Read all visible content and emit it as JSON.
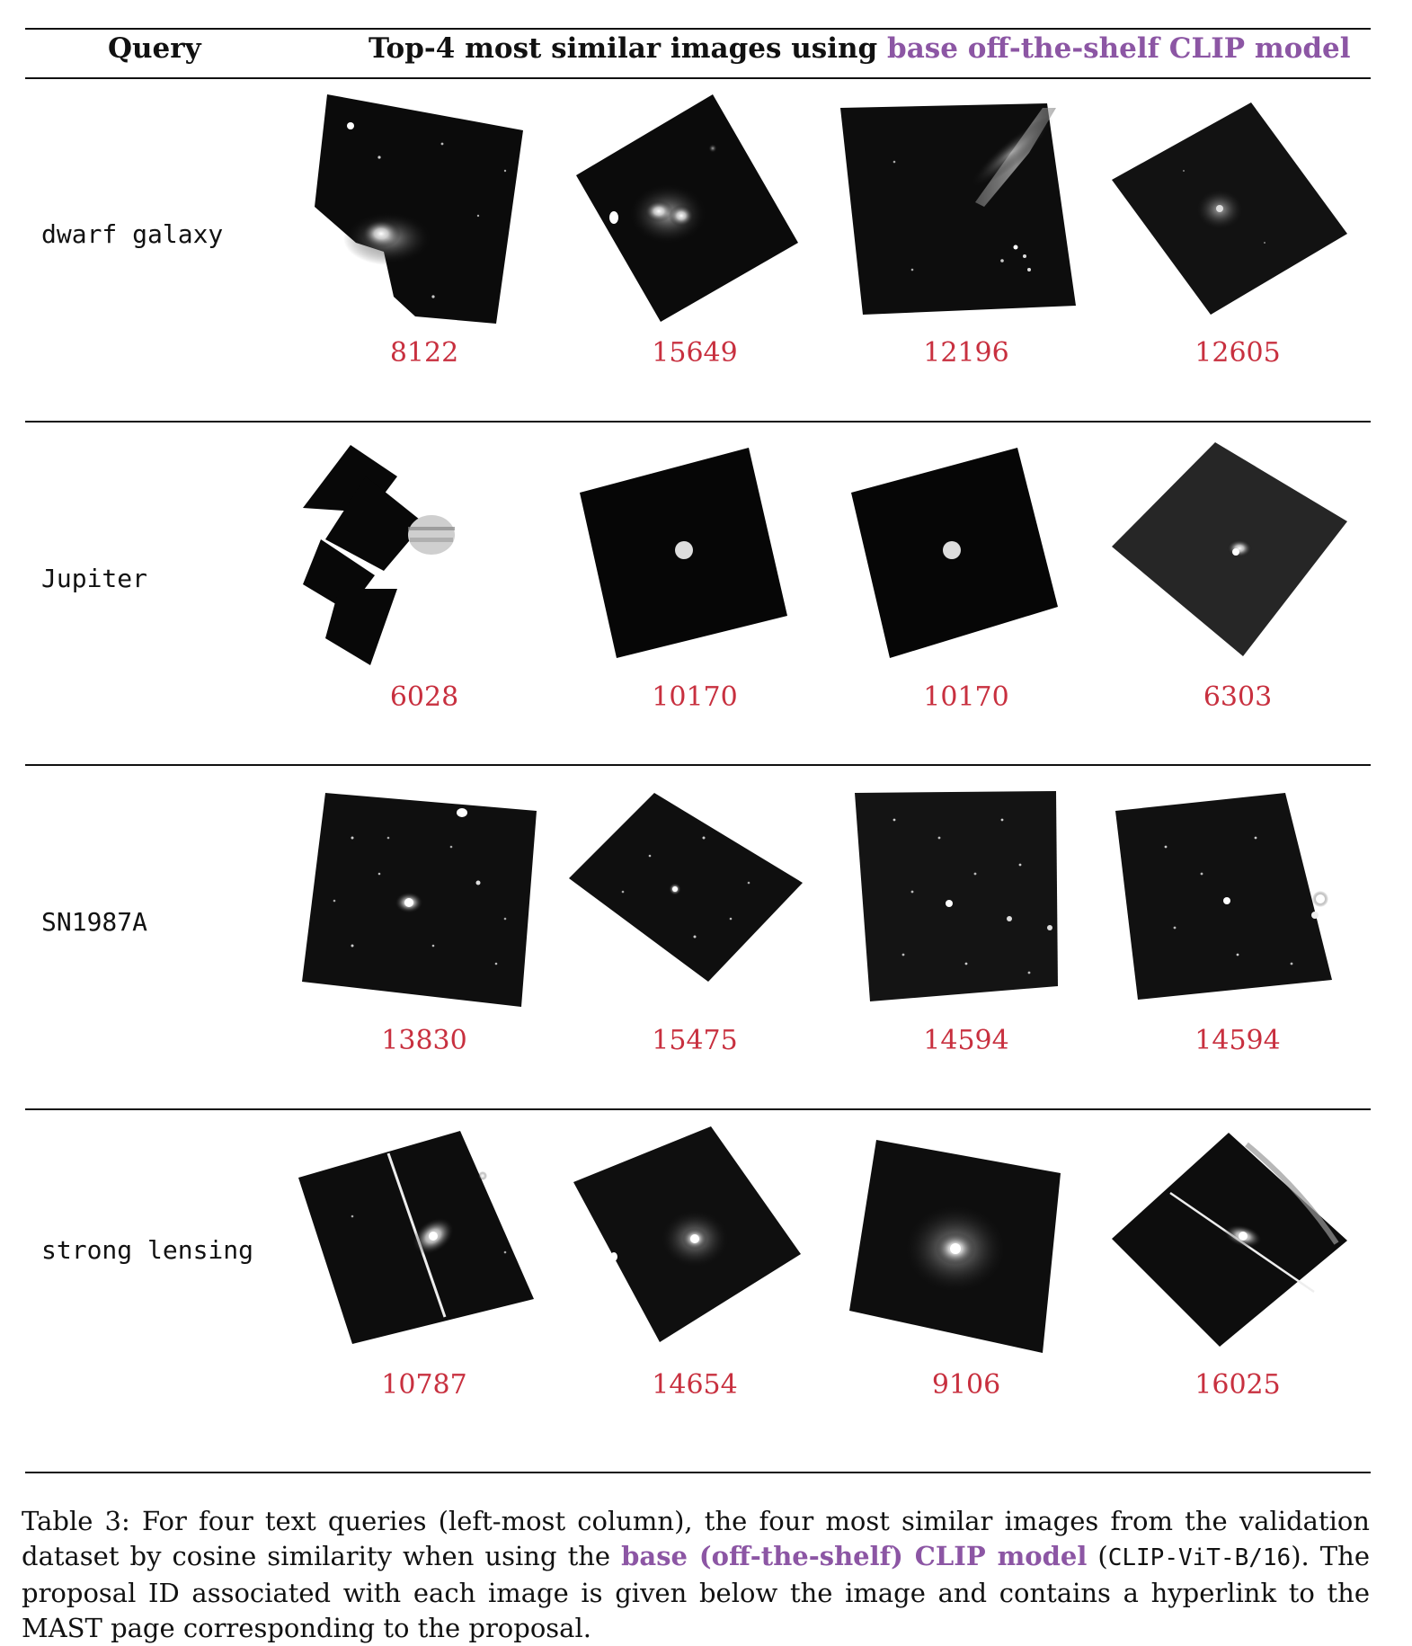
{
  "header": {
    "query_label": "Query",
    "top_prefix": "Top-4 most similar images using ",
    "top_model": "base off-the-shelf CLIP model"
  },
  "rows": [
    {
      "query": "dwarf galaxy",
      "ids": [
        "8122",
        "15649",
        "12196",
        "12605"
      ]
    },
    {
      "query": "Jupiter",
      "ids": [
        "6028",
        "10170",
        "10170",
        "6303"
      ]
    },
    {
      "query": "SN1987A",
      "ids": [
        "13830",
        "15475",
        "14594",
        "14594"
      ]
    },
    {
      "query": "strong lensing",
      "ids": [
        "10787",
        "14654",
        "9106",
        "16025"
      ]
    }
  ],
  "caption": {
    "part1": "Table 3: For four text queries (left-most column), the four most similar images from the validation dataset by cosine similarity when using the ",
    "model": "base (off-the-shelf) CLIP model",
    "part2": " (",
    "code": "CLIP-ViT-B/16",
    "part3": "). The proposal ID associated with each image is given below the image and contains a hyperlink to the MAST page corresponding to the proposal."
  },
  "colors": {
    "link": "#c8303f",
    "model": "#8c56a4"
  }
}
